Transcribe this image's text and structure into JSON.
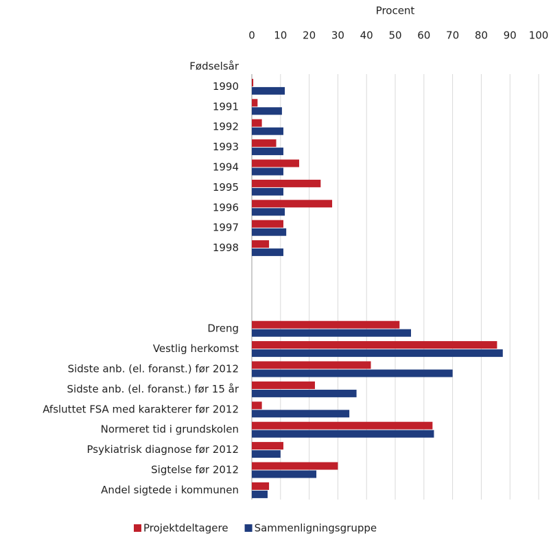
{
  "chart_data": {
    "type": "bar",
    "orientation": "horizontal",
    "xlabel": "Procent",
    "categories": [
      "Fødselsår",
      "1990",
      "1991",
      "1992",
      "1993",
      "1994",
      "1995",
      "1996",
      "1997",
      "1998",
      null,
      null,
      null,
      "Dreng",
      "Vestlig herkomst",
      "Sidste anb. (el. foranst.) før 2012",
      "Sidste anb. (el. foranst.) før 15 år",
      "Afsluttet FSA med karakterer før 2012",
      "Normeret tid i grundskolen",
      "Psykiatrisk diagnose før 2012",
      "Sigtelse før 2012",
      "Andel sigtede i kommunen"
    ],
    "series": [
      {
        "name": "Projektdeltagere",
        "color": "#c0202a",
        "values": [
          null,
          0.5,
          2,
          3.5,
          8.5,
          16.5,
          24,
          28,
          11,
          6,
          null,
          null,
          null,
          51.5,
          85.5,
          41.5,
          22,
          3.5,
          63,
          11,
          30,
          6
        ]
      },
      {
        "name": "Sammenligningsgruppe",
        "color": "#1f3c7e",
        "values": [
          null,
          11.5,
          10.5,
          11,
          11,
          11,
          11,
          11.5,
          12,
          11,
          null,
          null,
          null,
          55.5,
          87.5,
          70,
          36.5,
          34,
          63.5,
          10,
          22.5,
          5.5
        ]
      }
    ],
    "xlim": [
      0,
      100
    ],
    "xticks": [
      0,
      10,
      20,
      30,
      40,
      50,
      60,
      70,
      80,
      90,
      100
    ],
    "grid": true,
    "legend": "bottom"
  }
}
